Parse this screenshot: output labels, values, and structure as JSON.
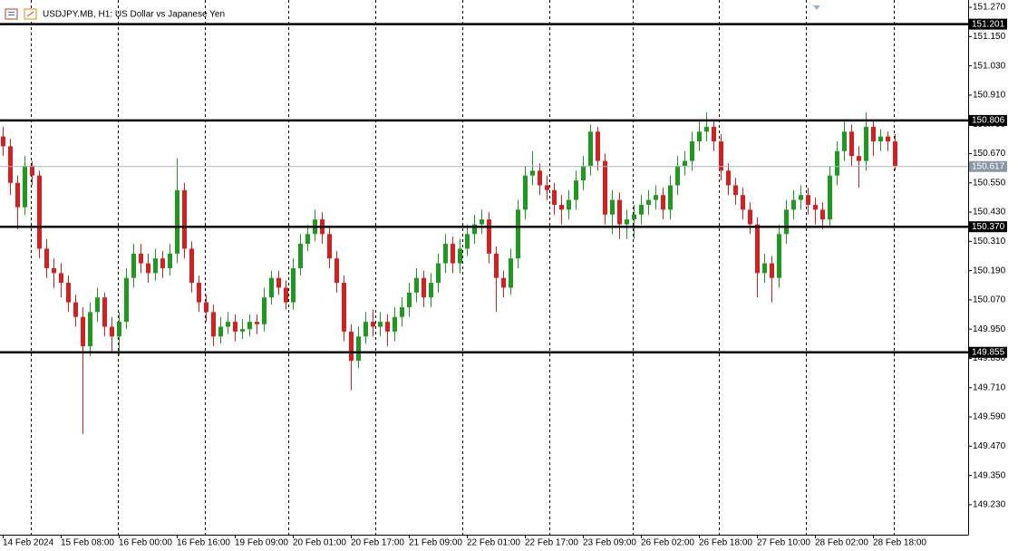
{
  "chart_data": {
    "type": "candlestick",
    "title": "USDJPY.MB, H1:  US Dollar vs Japanese Yen",
    "bull_color": "#1e9a1e",
    "bear_color": "#d42020",
    "categories": [
      "14 Feb 2024",
      null,
      null,
      null,
      null,
      null,
      null,
      null,
      "15 Feb 08:00",
      null,
      null,
      null,
      null,
      null,
      null,
      null,
      "16 Feb 00:00",
      null,
      null,
      null,
      null,
      null,
      null,
      null,
      "16 Feb 16:00",
      null,
      null,
      null,
      null,
      null,
      null,
      null,
      "19 Feb 09:00",
      null,
      null,
      null,
      null,
      null,
      null,
      null,
      "20 Feb 01:00",
      null,
      null,
      null,
      null,
      null,
      null,
      null,
      "20 Feb 17:00",
      null,
      null,
      null,
      null,
      null,
      null,
      null,
      "21 Feb 09:00",
      null,
      null,
      null,
      null,
      null,
      null,
      null,
      "22 Feb 01:00",
      null,
      null,
      null,
      null,
      null,
      null,
      null,
      "22 Feb 17:00",
      null,
      null,
      null,
      null,
      null,
      null,
      null,
      "23 Feb 09:00",
      null,
      null,
      null,
      null,
      null,
      null,
      null,
      "26 Feb 02:00",
      null,
      null,
      null,
      null,
      null,
      null,
      null,
      "26 Feb 18:00",
      null,
      null,
      null,
      null,
      null,
      null,
      null,
      "27 Feb 10:00",
      null,
      null,
      null,
      null,
      null,
      null,
      null,
      "28 Feb 02:00",
      null,
      null,
      null,
      null,
      null,
      null,
      null,
      "28 Feb 18:00",
      null,
      null,
      null
    ],
    "open": [
      150.74,
      150.7,
      150.55,
      150.45,
      150.62,
      150.58,
      150.28,
      150.2,
      150.18,
      150.14,
      150.06,
      150.0,
      149.88,
      150.02,
      150.08,
      149.96,
      149.92,
      149.98,
      150.16,
      150.26,
      150.22,
      150.18,
      150.24,
      150.2,
      150.26,
      150.52,
      150.28,
      150.14,
      150.06,
      150.02,
      149.92,
      149.96,
      149.98,
      149.94,
      149.95,
      149.98,
      149.97,
      150.08,
      150.16,
      150.12,
      150.06,
      150.2,
      150.3,
      150.34,
      150.4,
      150.34,
      150.24,
      150.14,
      149.94,
      149.82,
      149.92,
      149.98,
      149.96,
      149.98,
      149.94,
      150.0,
      150.04,
      150.1,
      150.16,
      150.08,
      150.14,
      150.22,
      150.3,
      150.22,
      150.28,
      150.34,
      150.38,
      150.4,
      150.26,
      150.16,
      150.12,
      150.24,
      150.44,
      150.58,
      150.6,
      150.54,
      150.52,
      150.46,
      150.44,
      150.48,
      150.56,
      150.62,
      150.76,
      150.64,
      150.42,
      150.48,
      150.38,
      150.4,
      150.42,
      150.46,
      150.48,
      150.5,
      150.44,
      150.54,
      150.62,
      150.64,
      150.72,
      150.76,
      150.78,
      150.72,
      150.6,
      150.54,
      150.5,
      150.44,
      150.38,
      150.18,
      150.22,
      150.16,
      150.34,
      150.44,
      150.48,
      150.5,
      150.46,
      150.44,
      150.4,
      150.58,
      150.68,
      150.76,
      150.66,
      150.64,
      150.78,
      150.72,
      150.74,
      150.72
    ],
    "high": [
      150.78,
      150.73,
      150.58,
      150.66,
      150.64,
      150.6,
      150.32,
      150.24,
      150.22,
      150.17,
      150.09,
      150.04,
      150.06,
      150.12,
      150.1,
      150.0,
      150.02,
      150.2,
      150.3,
      150.3,
      150.26,
      150.28,
      150.27,
      150.3,
      150.65,
      150.55,
      150.31,
      150.17,
      150.09,
      150.05,
      150.0,
      150.02,
      150.01,
      149.99,
      150.01,
      150.01,
      150.12,
      150.19,
      150.19,
      150.15,
      150.24,
      150.34,
      150.38,
      150.44,
      150.43,
      150.37,
      150.27,
      150.17,
      149.97,
      149.96,
      150.02,
      150.03,
      150.02,
      150.01,
      150.04,
      150.08,
      150.14,
      150.2,
      150.19,
      150.18,
      150.26,
      150.34,
      150.33,
      150.32,
      150.38,
      150.42,
      150.44,
      150.43,
      150.29,
      150.19,
      150.28,
      150.48,
      150.62,
      150.68,
      150.63,
      150.58,
      150.55,
      150.5,
      150.52,
      150.6,
      150.66,
      150.79,
      150.78,
      150.67,
      150.52,
      150.51,
      150.44,
      150.46,
      150.5,
      150.52,
      150.54,
      150.53,
      150.58,
      150.66,
      150.68,
      150.76,
      150.8,
      150.84,
      150.81,
      150.75,
      150.63,
      150.57,
      150.53,
      150.47,
      150.41,
      150.26,
      150.25,
      150.38,
      150.48,
      150.52,
      150.54,
      150.53,
      150.49,
      150.47,
      150.62,
      150.72,
      150.8,
      150.79,
      150.7,
      150.84,
      150.81,
      150.77,
      150.76,
      150.75
    ],
    "low": [
      150.66,
      150.5,
      150.36,
      150.42,
      150.54,
      150.24,
      150.16,
      150.12,
      150.08,
      150.02,
      149.96,
      149.52,
      149.84,
      149.98,
      149.92,
      149.86,
      149.84,
      149.95,
      150.12,
      150.18,
      150.14,
      150.15,
      150.16,
      150.17,
      150.22,
      150.24,
      150.1,
      150.02,
      149.98,
      149.88,
      149.89,
      149.93,
      149.9,
      149.91,
      149.92,
      149.93,
      149.94,
      150.05,
      150.09,
      150.03,
      150.03,
      150.17,
      150.27,
      150.31,
      150.3,
      150.2,
      150.1,
      149.9,
      149.7,
      149.79,
      149.89,
      149.92,
      149.92,
      149.88,
      149.9,
      149.96,
      150.0,
      150.06,
      150.04,
      150.04,
      150.1,
      150.18,
      150.18,
      150.18,
      150.25,
      150.3,
      150.34,
      150.22,
      150.02,
      150.08,
      150.09,
      150.2,
      150.4,
      150.54,
      150.5,
      150.48,
      150.42,
      150.38,
      150.4,
      150.44,
      150.52,
      150.58,
      150.6,
      150.38,
      150.34,
      150.32,
      150.32,
      150.32,
      150.38,
      150.42,
      150.44,
      150.4,
      150.4,
      150.5,
      150.58,
      150.6,
      150.68,
      150.72,
      150.68,
      150.56,
      150.5,
      150.46,
      150.4,
      150.34,
      150.08,
      150.14,
      150.06,
      150.12,
      150.3,
      150.4,
      150.44,
      150.42,
      150.38,
      150.36,
      150.37,
      150.54,
      150.64,
      150.62,
      150.53,
      150.6,
      150.66,
      150.68,
      150.68,
      150.6
    ],
    "close": [
      150.7,
      150.55,
      150.45,
      150.62,
      150.58,
      150.28,
      150.2,
      150.18,
      150.14,
      150.06,
      150.0,
      149.88,
      150.02,
      150.08,
      149.96,
      149.92,
      149.98,
      150.16,
      150.26,
      150.22,
      150.18,
      150.24,
      150.2,
      150.26,
      150.52,
      150.28,
      150.14,
      150.06,
      150.02,
      149.92,
      149.96,
      149.98,
      149.94,
      149.95,
      149.98,
      149.97,
      150.08,
      150.16,
      150.12,
      150.06,
      150.2,
      150.3,
      150.34,
      150.4,
      150.34,
      150.24,
      150.14,
      149.94,
      149.82,
      149.92,
      149.98,
      149.96,
      149.98,
      149.94,
      150.0,
      150.04,
      150.1,
      150.16,
      150.08,
      150.14,
      150.22,
      150.3,
      150.22,
      150.28,
      150.34,
      150.38,
      150.4,
      150.26,
      150.16,
      150.12,
      150.24,
      150.44,
      150.58,
      150.6,
      150.54,
      150.52,
      150.46,
      150.44,
      150.48,
      150.56,
      150.62,
      150.76,
      150.64,
      150.42,
      150.48,
      150.38,
      150.4,
      150.42,
      150.46,
      150.48,
      150.5,
      150.44,
      150.54,
      150.62,
      150.64,
      150.72,
      150.76,
      150.78,
      150.72,
      150.6,
      150.54,
      150.5,
      150.44,
      150.38,
      150.18,
      150.22,
      150.16,
      150.34,
      150.44,
      150.48,
      150.5,
      150.46,
      150.44,
      150.4,
      150.58,
      150.68,
      150.76,
      150.66,
      150.64,
      150.78,
      150.72,
      150.74,
      150.72,
      150.62
    ],
    "ylim": [
      149.107,
      151.3
    ],
    "yticks": [
      {
        "value": 151.27,
        "label": "151.270"
      },
      {
        "value": 151.15,
        "label": "151.150"
      },
      {
        "value": 151.03,
        "label": "151.030"
      },
      {
        "value": 150.91,
        "label": "150.910"
      },
      {
        "value": 150.79,
        "label": "150.790"
      },
      {
        "value": 150.67,
        "label": "150.670"
      },
      {
        "value": 150.55,
        "label": "150.550"
      },
      {
        "value": 150.43,
        "label": "150.430"
      },
      {
        "value": 150.31,
        "label": "150.310"
      },
      {
        "value": 150.19,
        "label": "150.190"
      },
      {
        "value": 150.07,
        "label": "150.070"
      },
      {
        "value": 149.95,
        "label": "149.950"
      },
      {
        "value": 149.83,
        "label": "149.830"
      },
      {
        "value": 149.71,
        "label": "149.710"
      },
      {
        "value": 149.59,
        "label": "149.590"
      },
      {
        "value": 149.47,
        "label": "149.470"
      },
      {
        "value": 149.35,
        "label": "149.350"
      },
      {
        "value": 149.23,
        "label": "149.230"
      }
    ],
    "levels": [
      151.201,
      150.806,
      {
        "value": 150.37,
        "label": "150.370"
      },
      149.855
    ],
    "current_price": 150.617
  }
}
